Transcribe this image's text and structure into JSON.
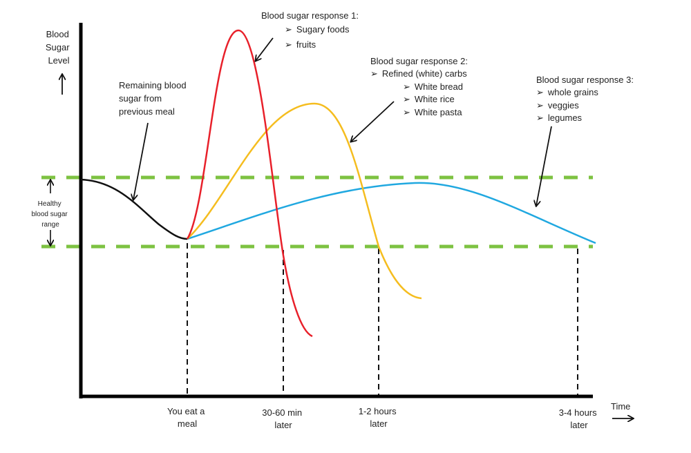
{
  "y_axis_label": [
    "Blood",
    "Sugar",
    "Level"
  ],
  "x_axis_label": "Time",
  "healthy_range_label": [
    "Healthy",
    "blood sugar",
    "range"
  ],
  "remaining_label": [
    "Remaining blood",
    "sugar from",
    "previous meal"
  ],
  "response1": {
    "title": "Blood sugar response 1:",
    "items": [
      "Sugary foods",
      "fruits"
    ]
  },
  "response2": {
    "title": "Blood sugar response 2:",
    "category": "Refined (white) carbs",
    "items": [
      "White bread",
      "White rice",
      "White pasta"
    ]
  },
  "response3": {
    "title": "Blood sugar response 3:",
    "items": [
      "whole grains",
      "veggies",
      "legumes"
    ]
  },
  "time_markers": [
    {
      "lines": [
        "You eat a",
        "meal"
      ]
    },
    {
      "lines": [
        "30-60 min",
        "later"
      ]
    },
    {
      "lines": [
        "1-2 hours",
        "later"
      ]
    },
    {
      "lines": [
        "3-4 hours",
        "later"
      ]
    }
  ],
  "bullet": "➢",
  "colors": {
    "response1": "#e8202a",
    "response2": "#f5bd1f",
    "response3": "#20a8e0",
    "baseline": "#111111",
    "healthy_range": "#7dc242"
  }
}
